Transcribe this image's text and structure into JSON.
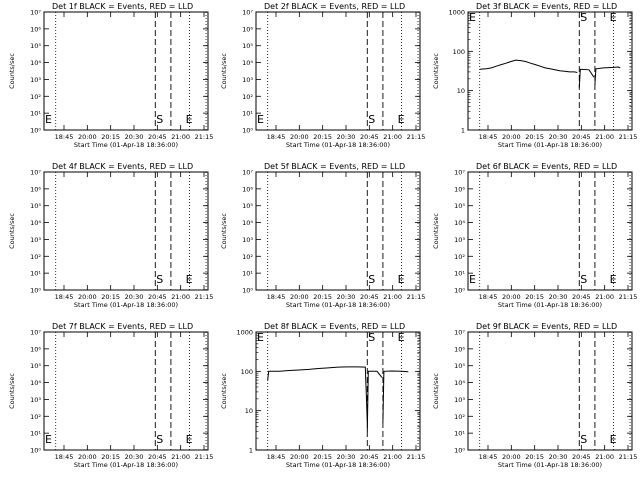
{
  "window": {
    "width_label": "",
    "title": ""
  },
  "chart_data": [
    {
      "type": "line",
      "title": "Det 1f BLACK = Events, RED = LLD",
      "xlabel": "Start Time (01-Apr-18 18:36:00)",
      "ylabel": "Counts/sec",
      "yscale": "log",
      "ylim": [
        1,
        10000000
      ],
      "yticklabels": [
        "10^0",
        "10^1",
        "10^2",
        "10^3",
        "10^4",
        "10^5",
        "10^6",
        "10^7"
      ],
      "xlim": [
        "18:36",
        "21:24"
      ],
      "xticklabels": [
        "18:45",
        "20:00",
        "20:15",
        "20:30",
        "20:45",
        "21:00",
        "21:15"
      ],
      "x_dotted": [
        "18:48",
        "21:05",
        "21:22"
      ],
      "x_dashed": [
        "20:30",
        "20:46"
      ],
      "markers": [
        {
          "text": "S",
          "x": "20:30"
        },
        {
          "text": "E",
          "x": "21:00"
        },
        {
          "text": "E",
          "x": "18:37"
        }
      ],
      "series": []
    },
    {
      "type": "line",
      "title": "Det 2f BLACK = Events, RED = LLD",
      "xlabel": "Start Time (01-Apr-18 18:36:00)",
      "ylabel": "Counts/sec",
      "yscale": "log",
      "ylim": [
        1,
        10000000
      ],
      "yticklabels": [
        "10^0",
        "10^1",
        "10^2",
        "10^3",
        "10^4",
        "10^5",
        "10^6",
        "10^7"
      ],
      "xlim": [
        "18:36",
        "21:24"
      ],
      "xticklabels": [
        "18:45",
        "20:00",
        "20:15",
        "20:30",
        "20:45",
        "21:00",
        "21:15"
      ],
      "x_dotted": [
        "18:48",
        "21:05",
        "21:22"
      ],
      "x_dashed": [
        "20:30",
        "20:46"
      ],
      "markers": [
        {
          "text": "S",
          "x": "20:30"
        },
        {
          "text": "E",
          "x": "21:00"
        },
        {
          "text": "E",
          "x": "18:37"
        }
      ],
      "series": []
    },
    {
      "type": "line",
      "title": "Det 3f BLACK = Events, RED = LLD",
      "xlabel": "Start Time (01-Apr-18 18:36:00)",
      "ylabel": "Counts/sec",
      "yscale": "log",
      "ylim": [
        1,
        1000
      ],
      "yticklabels": [
        "1",
        "10",
        "100",
        "1000"
      ],
      "xlim": [
        "18:36",
        "21:24"
      ],
      "xticklabels": [
        "18:45",
        "20:00",
        "20:15",
        "20:30",
        "20:45",
        "21:00",
        "21:15"
      ],
      "x_dotted": [
        "18:48",
        "21:05",
        "21:22"
      ],
      "x_dashed": [
        "20:30",
        "20:46"
      ],
      "markers": [
        {
          "text": "S",
          "x": "20:30"
        },
        {
          "text": "E",
          "x": "21:00"
        },
        {
          "text": "E",
          "x": "18:37"
        }
      ],
      "series": [
        {
          "points": [
            [
              "18:48",
              35
            ],
            [
              "18:55",
              36
            ],
            [
              "19:00",
              38
            ],
            [
              "19:05",
              42
            ],
            [
              "19:10",
              46
            ],
            [
              "19:15",
              50
            ],
            [
              "19:20",
              55
            ],
            [
              "19:25",
              60
            ],
            [
              "19:30",
              58
            ],
            [
              "19:35",
              55
            ],
            [
              "19:40",
              50
            ],
            [
              "19:45",
              46
            ],
            [
              "19:50",
              42
            ],
            [
              "19:55",
              38
            ],
            [
              "20:00",
              36
            ],
            [
              "20:05",
              34
            ],
            [
              "20:10",
              32
            ],
            [
              "20:15",
              31
            ],
            [
              "20:20",
              30
            ],
            [
              "20:25",
              30
            ],
            [
              "20:28",
              29
            ]
          ]
        },
        {
          "points": [
            [
              "20:30",
              12
            ],
            [
              "20:31",
              35
            ],
            [
              "20:40",
              34
            ],
            [
              "20:45",
              22
            ]
          ]
        },
        {
          "points": [
            [
              "20:46",
              14
            ],
            [
              "20:47",
              36
            ],
            [
              "20:55",
              38
            ],
            [
              "21:05",
              39
            ],
            [
              "21:10",
              40
            ],
            [
              "21:12",
              38
            ]
          ]
        }
      ]
    },
    {
      "type": "line",
      "title": "Det 4f BLACK = Events, RED = LLD",
      "xlabel": "Start Time (01-Apr-18 18:36:00)",
      "ylabel": "Counts/sec",
      "yscale": "log",
      "ylim": [
        1,
        10000000
      ],
      "yticklabels": [
        "10^0",
        "10^1",
        "10^2",
        "10^3",
        "10^4",
        "10^5",
        "10^6",
        "10^7"
      ],
      "xlim": [
        "18:36",
        "21:24"
      ],
      "xticklabels": [
        "18:45",
        "20:00",
        "20:15",
        "20:30",
        "20:45",
        "21:00",
        "21:15"
      ],
      "x_dotted": [
        "18:48",
        "21:05",
        "21:22"
      ],
      "x_dashed": [
        "20:30",
        "20:46"
      ],
      "markers": [
        {
          "text": "S",
          "x": "20:30"
        },
        {
          "text": "E",
          "x": "21:00"
        }
      ],
      "series": []
    },
    {
      "type": "line",
      "title": "Det 5f BLACK = Events, RED = LLD",
      "xlabel": "Start Time (01-Apr-18 18:36:00)",
      "ylabel": "Counts/sec",
      "yscale": "log",
      "ylim": [
        1,
        10000000
      ],
      "yticklabels": [
        "10^0",
        "10^1",
        "10^2",
        "10^3",
        "10^4",
        "10^5",
        "10^6",
        "10^7"
      ],
      "xlim": [
        "18:36",
        "21:24"
      ],
      "xticklabels": [
        "18:45",
        "20:00",
        "20:15",
        "20:30",
        "20:45",
        "21:00",
        "21:15"
      ],
      "x_dotted": [
        "18:48",
        "21:05",
        "21:22"
      ],
      "x_dashed": [
        "20:30",
        "20:46"
      ],
      "markers": [
        {
          "text": "S",
          "x": "20:30"
        },
        {
          "text": "E",
          "x": "21:00"
        }
      ],
      "series": []
    },
    {
      "type": "line",
      "title": "Det 6f BLACK = Events, RED = LLD",
      "xlabel": "Start Time (01-Apr-18 18:36:00)",
      "ylabel": "Counts/sec",
      "yscale": "log",
      "ylim": [
        1,
        10000000
      ],
      "yticklabels": [
        "10^0",
        "10^1",
        "10^2",
        "10^3",
        "10^4",
        "10^5",
        "10^6",
        "10^7"
      ],
      "xlim": [
        "18:36",
        "21:24"
      ],
      "xticklabels": [
        "18:45",
        "20:00",
        "20:15",
        "20:30",
        "20:45",
        "21:00",
        "21:15"
      ],
      "x_dotted": [
        "18:48",
        "21:05",
        "21:22"
      ],
      "x_dashed": [
        "20:30",
        "20:46"
      ],
      "markers": [
        {
          "text": "S",
          "x": "20:30"
        },
        {
          "text": "E",
          "x": "21:00"
        },
        {
          "text": "E",
          "x": "18:37"
        }
      ],
      "series": []
    },
    {
      "type": "line",
      "title": "Det 7f BLACK = Events, RED = LLD",
      "xlabel": "Start Time (01-Apr-18 18:36:00)",
      "ylabel": "Counts/sec",
      "yscale": "log",
      "ylim": [
        1,
        10000000
      ],
      "yticklabels": [
        "10^0",
        "10^1",
        "10^2",
        "10^3",
        "10^4",
        "10^5",
        "10^6",
        "10^7"
      ],
      "xlim": [
        "18:36",
        "21:24"
      ],
      "xticklabels": [
        "18:45",
        "20:00",
        "20:15",
        "20:30",
        "20:45",
        "21:00",
        "21:15"
      ],
      "x_dotted": [
        "18:48",
        "21:05",
        "21:22"
      ],
      "x_dashed": [
        "20:30",
        "20:46"
      ],
      "markers": [
        {
          "text": "S",
          "x": "20:30"
        },
        {
          "text": "E",
          "x": "21:00"
        },
        {
          "text": "E",
          "x": "18:37"
        }
      ],
      "series": []
    },
    {
      "type": "line",
      "title": "Det 8f BLACK = Events, RED = LLD",
      "xlabel": "Start Time (01-Apr-18 18:36:00)",
      "ylabel": "Counts/sec",
      "yscale": "log",
      "ylim": [
        1,
        1000
      ],
      "yticklabels": [
        "1",
        "10",
        "100",
        "1000"
      ],
      "xlim": [
        "18:36",
        "21:24"
      ],
      "xticklabels": [
        "18:45",
        "20:00",
        "20:15",
        "20:30",
        "20:45",
        "21:00",
        "21:15"
      ],
      "x_dotted": [
        "18:48",
        "21:05",
        "21:22"
      ],
      "x_dashed": [
        "20:30",
        "20:46"
      ],
      "markers": [
        {
          "text": "S",
          "x": "20:30"
        },
        {
          "text": "E",
          "x": "21:00"
        },
        {
          "text": "E",
          "x": "18:37"
        }
      ],
      "series": [
        {
          "points": [
            [
              "18:48",
              60
            ],
            [
              "18:49",
              100
            ],
            [
              "18:55",
              100
            ],
            [
              "19:00",
              100
            ],
            [
              "19:10",
              105
            ],
            [
              "19:20",
              108
            ],
            [
              "19:30",
              112
            ],
            [
              "19:40",
              118
            ],
            [
              "19:50",
              122
            ],
            [
              "20:00",
              128
            ],
            [
              "20:10",
              130
            ],
            [
              "20:20",
              130
            ],
            [
              "20:28",
              128
            ],
            [
              "20:30",
              5
            ]
          ]
        },
        {
          "points": [
            [
              "20:30",
              3
            ],
            [
              "20:31",
              100
            ],
            [
              "20:40",
              100
            ],
            [
              "20:45",
              70
            ]
          ]
        },
        {
          "points": [
            [
              "20:46",
              5
            ],
            [
              "20:47",
              100
            ],
            [
              "20:55",
              102
            ],
            [
              "21:05",
              100
            ],
            [
              "21:12",
              98
            ]
          ]
        }
      ]
    },
    {
      "type": "line",
      "title": "Det 9f BLACK = Events, RED = LLD",
      "xlabel": "Start Time (01-Apr-18 18:36:00)",
      "ylabel": "Counts/sec",
      "yscale": "log",
      "ylim": [
        1,
        10000000
      ],
      "yticklabels": [
        "10^0",
        "10^1",
        "10^2",
        "10^3",
        "10^4",
        "10^5",
        "10^6",
        "10^7"
      ],
      "xlim": [
        "18:36",
        "21:24"
      ],
      "xticklabels": [
        "18:45",
        "20:00",
        "20:15",
        "20:30",
        "20:45",
        "21:00",
        "21:15"
      ],
      "x_dotted": [
        "18:48",
        "21:05",
        "21:22"
      ],
      "x_dashed": [
        "20:30",
        "20:46"
      ],
      "markers": [
        {
          "text": "S",
          "x": "20:30"
        },
        {
          "text": "E",
          "x": "21:00"
        }
      ],
      "series": []
    }
  ]
}
